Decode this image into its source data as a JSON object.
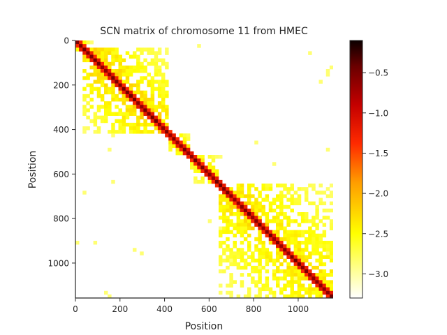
{
  "chart_data": {
    "type": "heatmap",
    "title": "SCN matrix of chromosome 11 from HMEC",
    "xlabel": "Position",
    "ylabel": "Position",
    "matrix_size": 1157,
    "xlim": [
      0,
      1157
    ],
    "ylim": [
      1157,
      0
    ],
    "x_ticks": [
      0,
      200,
      400,
      600,
      800,
      1000
    ],
    "y_ticks": [
      0,
      200,
      400,
      600,
      800,
      1000
    ],
    "colormap": "hot_r",
    "color_range": [
      -3.3,
      -0.1
    ],
    "colorbar_ticks": [
      -0.5,
      -1.0,
      -1.5,
      -2.0,
      -2.5,
      -3.0
    ],
    "grid": false,
    "domains": [
      {
        "start": 0,
        "end": 60,
        "strength": 0.9
      },
      {
        "start": 40,
        "end": 420,
        "strength": 0.8
      },
      {
        "start": 60,
        "end": 200,
        "strength": 0.85
      },
      {
        "start": 180,
        "end": 300,
        "strength": 0.85
      },
      {
        "start": 300,
        "end": 420,
        "strength": 0.75
      },
      {
        "start": 420,
        "end": 520,
        "strength": 0.8
      },
      {
        "start": 520,
        "end": 640,
        "strength": 0.75
      },
      {
        "start": 640,
        "end": 1157,
        "strength": 0.7
      },
      {
        "start": 640,
        "end": 860,
        "strength": 0.85
      },
      {
        "start": 860,
        "end": 1000,
        "strength": 0.8
      },
      {
        "start": 1000,
        "end": 1157,
        "strength": 0.8
      }
    ]
  }
}
